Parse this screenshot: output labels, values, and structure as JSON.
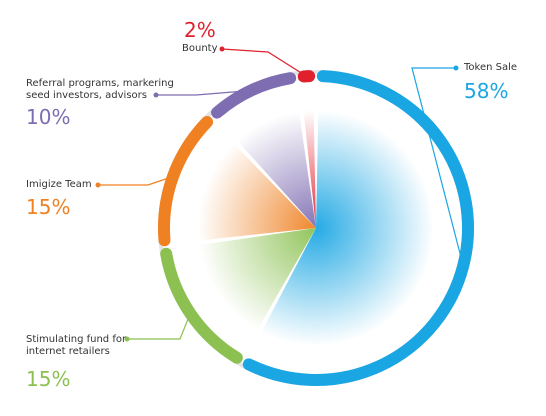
{
  "chart_data": {
    "type": "pie",
    "slices": [
      {
        "label": "Token Sale",
        "value": 58,
        "value_label": "58%",
        "color": "#1aa6e3"
      },
      {
        "label": "Stimulating fund for internet retailers",
        "label_lines": [
          "Stimulating fund for",
          "internet retailers"
        ],
        "value": 15,
        "value_label": "15%",
        "color": "#8cc152"
      },
      {
        "label": "Imigize Team",
        "value": 15,
        "value_label": "15%",
        "color": "#ef8123"
      },
      {
        "label": "Referral programs, markering seed investors, advisors",
        "label_lines": [
          "Referral programs, markering",
          "seed investors, advisors"
        ],
        "value": 10,
        "value_label": "10%",
        "color": "#7e6db1"
      },
      {
        "label": "Bounty",
        "value": 2,
        "value_label": "2%",
        "color": "#e0202d"
      }
    ],
    "ring_color": "#e3e3e3",
    "leader_color": "#999999",
    "legend": "callouts"
  }
}
